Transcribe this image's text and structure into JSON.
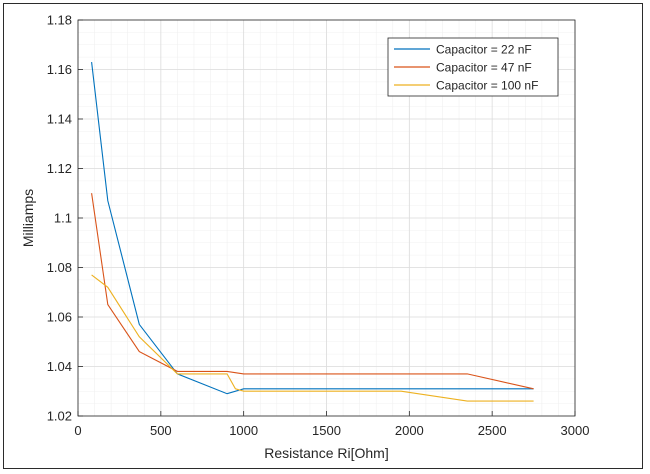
{
  "chart_data": {
    "type": "line",
    "title": "",
    "xlabel": "Resistance Ri[Ohm]",
    "ylabel": "Milliamps",
    "xlim": [
      0,
      3000
    ],
    "ylim": [
      1.02,
      1.18
    ],
    "xticks": [
      "0",
      "500",
      "1000",
      "1500",
      "2000",
      "2500",
      "3000"
    ],
    "yticks": [
      "1.02",
      "1.04",
      "1.06",
      "1.08",
      "1.1",
      "1.12",
      "1.14",
      "1.16",
      "1.18"
    ],
    "grid": true,
    "legend_position": "top-right",
    "series": [
      {
        "name": "Capacitor = 22 nF",
        "color": "#0072BD",
        "x": [
          82,
          180,
          370,
          600,
          900,
          1000,
          2750
        ],
        "y": [
          1.163,
          1.107,
          1.057,
          1.037,
          1.029,
          1.031,
          1.031
        ]
      },
      {
        "name": "Capacitor = 47 nF",
        "color": "#D95319",
        "x": [
          82,
          180,
          370,
          600,
          900,
          1000,
          2350,
          2750
        ],
        "y": [
          1.11,
          1.065,
          1.046,
          1.038,
          1.038,
          1.037,
          1.037,
          1.031
        ]
      },
      {
        "name": "Capacitor = 100 nF",
        "color": "#EDB120",
        "x": [
          82,
          180,
          370,
          600,
          900,
          950,
          1000,
          1950,
          2350,
          2750
        ],
        "y": [
          1.077,
          1.072,
          1.052,
          1.037,
          1.037,
          1.031,
          1.03,
          1.03,
          1.026,
          1.026
        ]
      }
    ]
  }
}
